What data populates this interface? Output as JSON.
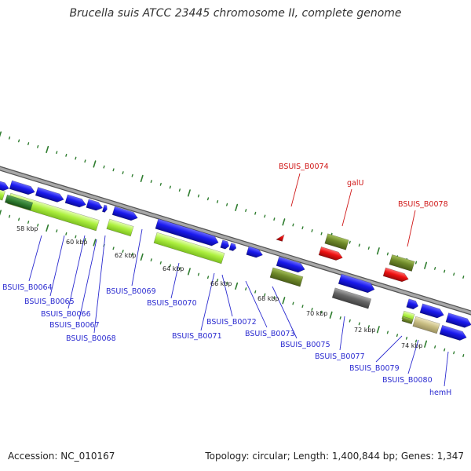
{
  "header": {
    "title": "Brucella suis ATCC 23445 chromosome II, complete genome"
  },
  "footer": {
    "accession": "Accession: NC_010167",
    "summary": "Topology: circular; Length: 1,400,844 bp; Genes: 1,347"
  },
  "colors": {
    "cds_blue": "#1a1aee",
    "rna_red": "#ee1111",
    "olive": "#6f8a2a",
    "lime": "#aef040",
    "gray": "#666666",
    "tan": "#c8bd82",
    "label_blue": "#2a2ad0",
    "label_red": "#d01818",
    "backbone": "#8c8c8c",
    "tick_green": "#2f7d2f"
  },
  "kbp_labels": [
    "58 kbp",
    "60 kbp",
    "62 kbp",
    "64 kbp",
    "66 kbp",
    "68 kbp",
    "70 kbp",
    "72 kbp",
    "74 kbp"
  ],
  "gene_labels": {
    "BSUIS_B0064": "BSUIS_B0064",
    "BSUIS_B0065": "BSUIS_B0065",
    "BSUIS_B0066": "BSUIS_B0066",
    "BSUIS_B0067": "BSUIS_B0067",
    "BSUIS_B0068": "BSUIS_B0068",
    "BSUIS_B0069": "BSUIS_B0069",
    "BSUIS_B0070": "BSUIS_B0070",
    "BSUIS_B0071": "BSUIS_B0071",
    "BSUIS_B0072": "BSUIS_B0072",
    "BSUIS_B0073": "BSUIS_B0073",
    "BSUIS_B0074": "BSUIS_B0074",
    "galU": "galU",
    "BSUIS_B0075": "BSUIS_B0075",
    "BSUIS_B0077": "BSUIS_B0077",
    "BSUIS_B0078": "BSUIS_B0078",
    "BSUIS_B0079": "BSUIS_B0079",
    "BSUIS_B0080": "BSUIS_B0080",
    "hemH": "hemH"
  }
}
